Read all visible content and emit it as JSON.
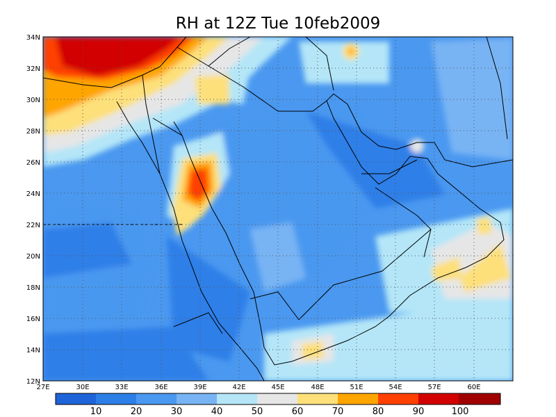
{
  "title": "RH at 12Z Tue 10feb2009",
  "map": {
    "lat_labels": [
      "34N",
      "32N",
      "30N",
      "28N",
      "26N",
      "24N",
      "22N",
      "20N",
      "18N",
      "16N",
      "14N",
      "12N"
    ],
    "lon_labels": [
      "27E",
      "30E",
      "33E",
      "36E",
      "39E",
      "42E",
      "45E",
      "48E",
      "51E",
      "54E",
      "57E",
      "60E"
    ],
    "lat_range": [
      12,
      34
    ],
    "lon_range": [
      27,
      63
    ],
    "grid": true
  },
  "colorbar": {
    "tick_labels": [
      "10",
      "20",
      "30",
      "40",
      "50",
      "60",
      "70",
      "80",
      "90",
      "100"
    ],
    "colors": [
      "#1e64d8",
      "#2d7fe8",
      "#4a98f0",
      "#78b4f4",
      "#b4e6f8",
      "#e6e6e6",
      "#fde07a",
      "#ffa500",
      "#ff4000",
      "#d20000",
      "#a00000"
    ]
  }
}
